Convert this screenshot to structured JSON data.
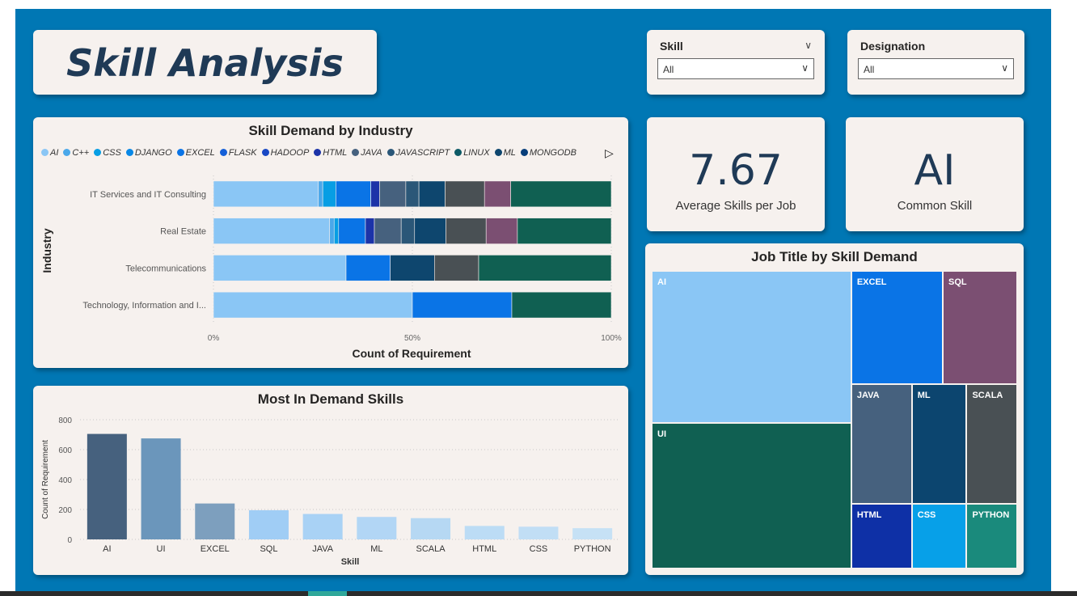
{
  "header": {
    "title": "Skill Analysis"
  },
  "slicers": [
    {
      "label": "Skill",
      "value": "All"
    },
    {
      "label": "Designation",
      "value": "All"
    }
  ],
  "kpis": [
    {
      "value": "7.67",
      "caption": "Average Skills per Job"
    },
    {
      "value": "AI",
      "caption": "Common Skill"
    }
  ],
  "industry_chart": {
    "title": "Skill Demand by Industry",
    "legend": [
      {
        "name": "AI",
        "color": "#8ac6f5"
      },
      {
        "name": "C++",
        "color": "#4aa8ea"
      },
      {
        "name": "CSS",
        "color": "#079ee4"
      },
      {
        "name": "DJANGO",
        "color": "#0888e6"
      },
      {
        "name": "EXCEL",
        "color": "#0a74e6"
      },
      {
        "name": "FLASK",
        "color": "#1560d8"
      },
      {
        "name": "HADOOP",
        "color": "#1848c4"
      },
      {
        "name": "HTML",
        "color": "#1c33a8"
      },
      {
        "name": "JAVA",
        "color": "#46617e"
      },
      {
        "name": "JAVASCRIPT",
        "color": "#2b5778"
      },
      {
        "name": "LINUX",
        "color": "#0d5a66"
      },
      {
        "name": "ML",
        "color": "#0e466e"
      },
      {
        "name": "MONGODB",
        "color": "#073e7a"
      }
    ],
    "legend_next_icon": "play-triangle-icon",
    "y_axis_label": "Industry",
    "x_axis_label": "Count of Requirement",
    "x_ticks": [
      "0%",
      "50%",
      "100%"
    ]
  },
  "skills_chart": {
    "title": "Most In Demand Skills",
    "y_axis_label": "Count of Requirement",
    "x_axis_label": "Skill",
    "y_ticks": [
      "0",
      "200",
      "400",
      "600",
      "800"
    ]
  },
  "treemap_chart": {
    "title": "Job Title by Skill Demand",
    "cells": [
      {
        "label": "AI",
        "color": "#8ac6f5"
      },
      {
        "label": "UI",
        "color": "#106052"
      },
      {
        "label": "EXCEL",
        "color": "#0a74e6"
      },
      {
        "label": "SQL",
        "color": "#7b4f72"
      },
      {
        "label": "JAVA",
        "color": "#46617e"
      },
      {
        "label": "ML",
        "color": "#0c456f"
      },
      {
        "label": "SCALA",
        "color": "#495054"
      },
      {
        "label": "HTML",
        "color": "#0e30a6"
      },
      {
        "label": "CSS",
        "color": "#07a0e8"
      },
      {
        "label": "PYTHON",
        "color": "#1a8a7c"
      }
    ]
  },
  "chart_data": [
    {
      "type": "bar",
      "orientation": "horizontal-stacked-100",
      "categories": [
        "IT Services and IT Consulting",
        "Real Estate",
        "Telecommunications",
        "Technology, Information and I..."
      ],
      "xlabel": "Count of Requirement",
      "ylabel": "Industry",
      "xlim": [
        0,
        100
      ],
      "series": [
        {
          "name": "AI",
          "values": [
            24,
            26,
            33.3,
            50
          ]
        },
        {
          "name": "C++",
          "values": [
            1,
            1,
            0,
            0
          ]
        },
        {
          "name": "CSS",
          "values": [
            3,
            1,
            0,
            0
          ]
        },
        {
          "name": "EXCEL",
          "values": [
            8,
            6,
            11.1,
            25
          ]
        },
        {
          "name": "HTML",
          "values": [
            2,
            2,
            0,
            0
          ]
        },
        {
          "name": "JAVA",
          "values": [
            6,
            6,
            0,
            0
          ]
        },
        {
          "name": "JAVASCRIPT",
          "values": [
            3,
            3,
            0,
            0
          ]
        },
        {
          "name": "ML",
          "values": [
            6,
            7,
            11.1,
            0
          ]
        },
        {
          "name": "SCALA",
          "values": [
            9,
            9,
            11.1,
            0
          ]
        },
        {
          "name": "SQL",
          "values": [
            6,
            7,
            0,
            0
          ]
        },
        {
          "name": "UI",
          "values": [
            23,
            21,
            33.3,
            25
          ]
        }
      ]
    },
    {
      "type": "bar",
      "categories": [
        "AI",
        "UI",
        "EXCEL",
        "SQL",
        "JAVA",
        "ML",
        "SCALA",
        "HTML",
        "CSS",
        "PYTHON"
      ],
      "values": [
        705,
        675,
        240,
        195,
        170,
        150,
        142,
        90,
        85,
        75
      ],
      "xlabel": "Skill",
      "ylabel": "Count of Requirement",
      "ylim": [
        0,
        800
      ]
    },
    {
      "type": "treemap",
      "categories": [
        "AI",
        "UI",
        "EXCEL",
        "SQL",
        "JAVA",
        "ML",
        "SCALA",
        "HTML",
        "CSS",
        "PYTHON"
      ],
      "values": [
        705,
        675,
        240,
        195,
        170,
        150,
        142,
        90,
        85,
        75
      ]
    }
  ]
}
